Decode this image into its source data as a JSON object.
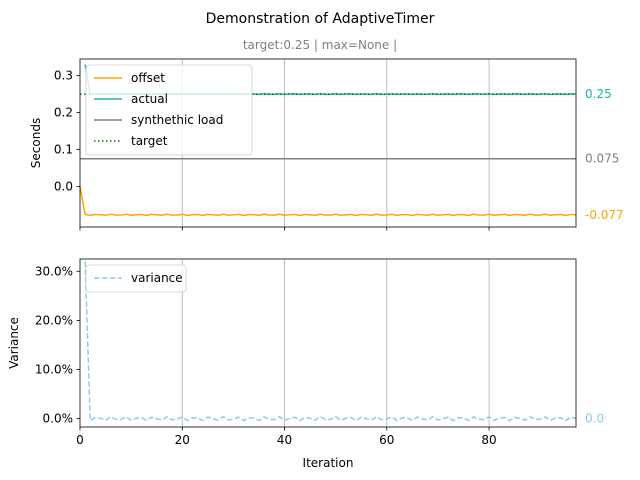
{
  "figure": {
    "title": "Demonstration of AdaptiveTimer",
    "subtitle": "target:0.25 | max=None |"
  },
  "colors": {
    "offset": "#ffa500",
    "actual": "#20b2aa",
    "synthetic": "#808080",
    "target": "#008000",
    "variance": "#87ceeb",
    "grid": "#b0b0b0",
    "subtitle": "#808080"
  },
  "chart_data": [
    {
      "type": "line",
      "ylabel": "Seconds",
      "xlim": [
        0,
        97
      ],
      "ylim": [
        -0.11,
        0.345
      ],
      "yticks": [
        0.0,
        0.1,
        0.2,
        0.3
      ],
      "ytick_labels": [
        "0.0",
        "0.1",
        "0.2",
        "0.3"
      ],
      "xticks": [
        0,
        20,
        40,
        60,
        80
      ],
      "grid": "x",
      "legend_position": "upper-left",
      "series": [
        {
          "name": "offset",
          "key": "offset",
          "style": "solid",
          "first": 0.0,
          "steady": -0.077,
          "jitter": 0.0015,
          "start": 0
        },
        {
          "name": "actual",
          "key": "actual",
          "style": "solid",
          "first": 0.33,
          "steady": 0.25,
          "jitter": 0.0008,
          "start": 1
        },
        {
          "name": "synthethic load",
          "key": "synthetic",
          "style": "solid",
          "first": 0.075,
          "steady": 0.075,
          "jitter": 0,
          "start": 0
        },
        {
          "name": "target",
          "key": "target",
          "style": "dotted",
          "first": 0.25,
          "steady": 0.25,
          "jitter": 0,
          "start": 0
        }
      ],
      "end_labels": [
        {
          "text": "0.25",
          "value": 0.25,
          "key": "actual"
        },
        {
          "text": "0.075",
          "value": 0.075,
          "key": "synthetic"
        },
        {
          "text": "-0.077",
          "value": -0.077,
          "key": "offset"
        }
      ]
    },
    {
      "type": "line",
      "xlabel": "Iteration",
      "ylabel": "Variance",
      "xlim": [
        0,
        97
      ],
      "ylim": [
        -0.017,
        0.325
      ],
      "yticks": [
        0.0,
        0.1,
        0.2,
        0.3
      ],
      "ytick_labels": [
        "0.0%",
        "10.0%",
        "20.0%",
        "30.0%"
      ],
      "xticks": [
        0,
        20,
        40,
        60,
        80
      ],
      "xtick_labels": [
        "0",
        "20",
        "40",
        "60",
        "80"
      ],
      "grid": "x",
      "legend_position": "upper-left",
      "series": [
        {
          "name": "variance",
          "key": "variance",
          "style": "dashed",
          "first": 0.32,
          "steady": 0.0,
          "jitter": 0.004,
          "start": 1
        }
      ],
      "end_labels": [
        {
          "text": "0.0",
          "value": 0.0,
          "key": "variance"
        }
      ]
    }
  ]
}
